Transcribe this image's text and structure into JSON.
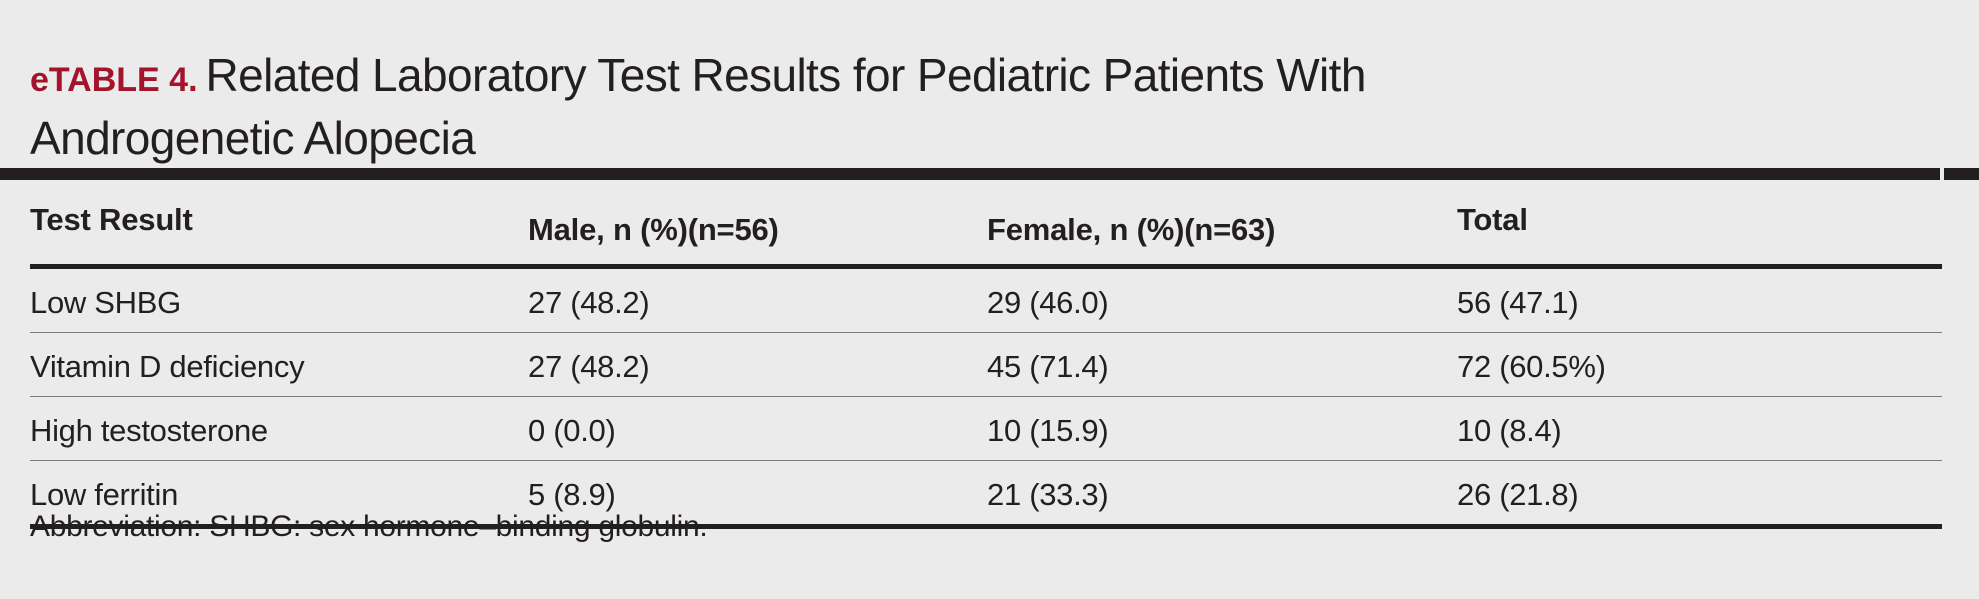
{
  "title": {
    "label": "eTABLE 4.",
    "text": "Related Laboratory Test Results for Pediatric Patients With Androgenetic Alopecia"
  },
  "colors": {
    "label": "#a3142c",
    "text": "#231f20",
    "background": "#ebebeb"
  },
  "table": {
    "headers": [
      "Test Result",
      "Male, n (%)(n=56)",
      "Female, n (%)(n=63)",
      "Total"
    ],
    "rows": [
      [
        "Low SHBG",
        "27 (48.2)",
        "29 (46.0)",
        "56 (47.1)"
      ],
      [
        "Vitamin D deficiency",
        "27 (48.2)",
        "45 (71.4)",
        "72 (60.5%)"
      ],
      [
        "High testosterone",
        "0 (0.0)",
        "10 (15.9)",
        "10 (8.4)"
      ],
      [
        "Low ferritin",
        "5 (8.9)",
        "21 (33.3)",
        "26 (21.8)"
      ]
    ]
  },
  "footnote": "Abbreviation: SHBG: sex hormone–binding globulin."
}
